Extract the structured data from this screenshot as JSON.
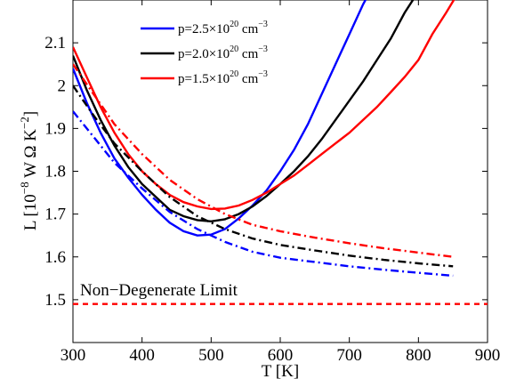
{
  "chart_data": {
    "type": "line",
    "xlabel": "T [K]",
    "ylabel": "L [10^-8 W Ω K^-2]",
    "ylabel_parts": {
      "pre": "L [10",
      "exp1": "−8",
      "mid": " W Ω K",
      "exp2": "−2",
      "post": "]"
    },
    "xlim": [
      300,
      900
    ],
    "ylim": [
      1.4,
      2.2
    ],
    "x_ticks": [
      300,
      400,
      500,
      600,
      700,
      800,
      900
    ],
    "x_tick_labels": [
      "300",
      "400",
      "500",
      "600",
      "700",
      "800",
      "900"
    ],
    "y_ticks": [
      1.5,
      1.6,
      1.7,
      1.8,
      1.9,
      2.0,
      2.1
    ],
    "y_tick_labels": [
      "1.5",
      "1.6",
      "1.7",
      "1.8",
      "1.9",
      "2",
      "2.1"
    ],
    "grid": false,
    "legend_position": "top-center",
    "legend": [
      {
        "base": "p=2.5×10",
        "exp1": "20",
        "unit": " cm",
        "exp2": "−3",
        "color": "#0000ff"
      },
      {
        "base": "p=2.0×10",
        "exp1": "20",
        "unit": " cm",
        "exp2": "−3",
        "color": "#000000"
      },
      {
        "base": "p=1.5×10",
        "exp1": "20",
        "unit": " cm",
        "exp2": "−3",
        "color": "#ff0000"
      }
    ],
    "annotation": "Non−Degenerate Limit",
    "series": [
      {
        "name": "p=2.5×10^20 cm^-3",
        "style": "solid",
        "color": "#0000ff",
        "points": [
          [
            300,
            2.04
          ],
          [
            320,
            1.96
          ],
          [
            340,
            1.89
          ],
          [
            360,
            1.83
          ],
          [
            380,
            1.785
          ],
          [
            400,
            1.745
          ],
          [
            420,
            1.71
          ],
          [
            440,
            1.68
          ],
          [
            460,
            1.66
          ],
          [
            480,
            1.65
          ],
          [
            500,
            1.652
          ],
          [
            520,
            1.665
          ],
          [
            540,
            1.69
          ],
          [
            560,
            1.72
          ],
          [
            580,
            1.755
          ],
          [
            600,
            1.8
          ],
          [
            620,
            1.85
          ],
          [
            640,
            1.91
          ],
          [
            660,
            1.98
          ],
          [
            680,
            2.05
          ],
          [
            700,
            2.12
          ],
          [
            720,
            2.19
          ],
          [
            730,
            2.22
          ]
        ]
      },
      {
        "name": "p=2.0×10^20 cm^-3",
        "style": "solid",
        "color": "#000000",
        "points": [
          [
            300,
            2.07
          ],
          [
            320,
            1.99
          ],
          [
            340,
            1.92
          ],
          [
            360,
            1.86
          ],
          [
            380,
            1.81
          ],
          [
            400,
            1.77
          ],
          [
            420,
            1.74
          ],
          [
            440,
            1.71
          ],
          [
            460,
            1.695
          ],
          [
            480,
            1.686
          ],
          [
            500,
            1.683
          ],
          [
            520,
            1.688
          ],
          [
            540,
            1.7
          ],
          [
            560,
            1.718
          ],
          [
            580,
            1.742
          ],
          [
            600,
            1.77
          ],
          [
            620,
            1.8
          ],
          [
            640,
            1.835
          ],
          [
            660,
            1.875
          ],
          [
            680,
            1.92
          ],
          [
            700,
            1.965
          ],
          [
            720,
            2.01
          ],
          [
            740,
            2.06
          ],
          [
            760,
            2.11
          ],
          [
            780,
            2.17
          ],
          [
            800,
            2.22
          ]
        ]
      },
      {
        "name": "p=1.5×10^20 cm^-3",
        "style": "solid",
        "color": "#ff0000",
        "points": [
          [
            300,
            2.09
          ],
          [
            320,
            2.02
          ],
          [
            340,
            1.95
          ],
          [
            360,
            1.89
          ],
          [
            380,
            1.84
          ],
          [
            400,
            1.8
          ],
          [
            420,
            1.77
          ],
          [
            440,
            1.745
          ],
          [
            460,
            1.728
          ],
          [
            480,
            1.718
          ],
          [
            500,
            1.712
          ],
          [
            520,
            1.713
          ],
          [
            540,
            1.72
          ],
          [
            560,
            1.733
          ],
          [
            580,
            1.75
          ],
          [
            600,
            1.77
          ],
          [
            620,
            1.79
          ],
          [
            640,
            1.815
          ],
          [
            660,
            1.84
          ],
          [
            680,
            1.865
          ],
          [
            700,
            1.89
          ],
          [
            720,
            1.92
          ],
          [
            740,
            1.95
          ],
          [
            760,
            1.985
          ],
          [
            780,
            2.02
          ],
          [
            800,
            2.06
          ],
          [
            820,
            2.12
          ],
          [
            840,
            2.17
          ],
          [
            855,
            2.21
          ]
        ]
      },
      {
        "name": "p=2.5×10^20 cm^-3 (dash-dot)",
        "style": "dashdot",
        "color": "#0000ff",
        "points": [
          [
            300,
            1.94
          ],
          [
            330,
            1.88
          ],
          [
            360,
            1.82
          ],
          [
            400,
            1.76
          ],
          [
            440,
            1.705
          ],
          [
            480,
            1.665
          ],
          [
            520,
            1.635
          ],
          [
            560,
            1.612
          ],
          [
            600,
            1.598
          ],
          [
            650,
            1.588
          ],
          [
            700,
            1.578
          ],
          [
            750,
            1.57
          ],
          [
            800,
            1.563
          ],
          [
            850,
            1.556
          ]
        ]
      },
      {
        "name": "p=2.0×10^20 cm^-3 (dash-dot)",
        "style": "dashdot",
        "color": "#000000",
        "points": [
          [
            300,
            2.0
          ],
          [
            330,
            1.93
          ],
          [
            360,
            1.865
          ],
          [
            400,
            1.8
          ],
          [
            440,
            1.74
          ],
          [
            480,
            1.695
          ],
          [
            520,
            1.665
          ],
          [
            560,
            1.643
          ],
          [
            600,
            1.628
          ],
          [
            650,
            1.615
          ],
          [
            700,
            1.603
          ],
          [
            750,
            1.593
          ],
          [
            800,
            1.585
          ],
          [
            850,
            1.578
          ]
        ]
      },
      {
        "name": "p=1.5×10^20 cm^-3 (dash-dot)",
        "style": "dashdot",
        "color": "#ff0000",
        "points": [
          [
            300,
            2.05
          ],
          [
            330,
            1.98
          ],
          [
            360,
            1.91
          ],
          [
            400,
            1.84
          ],
          [
            440,
            1.78
          ],
          [
            480,
            1.735
          ],
          [
            520,
            1.7
          ],
          [
            560,
            1.675
          ],
          [
            600,
            1.66
          ],
          [
            650,
            1.645
          ],
          [
            700,
            1.632
          ],
          [
            750,
            1.62
          ],
          [
            800,
            1.61
          ],
          [
            850,
            1.6
          ]
        ]
      },
      {
        "name": "Non−Degenerate Limit",
        "style": "dashed",
        "color": "#ff0000",
        "points": [
          [
            300,
            1.49
          ],
          [
            900,
            1.49
          ]
        ]
      }
    ]
  }
}
